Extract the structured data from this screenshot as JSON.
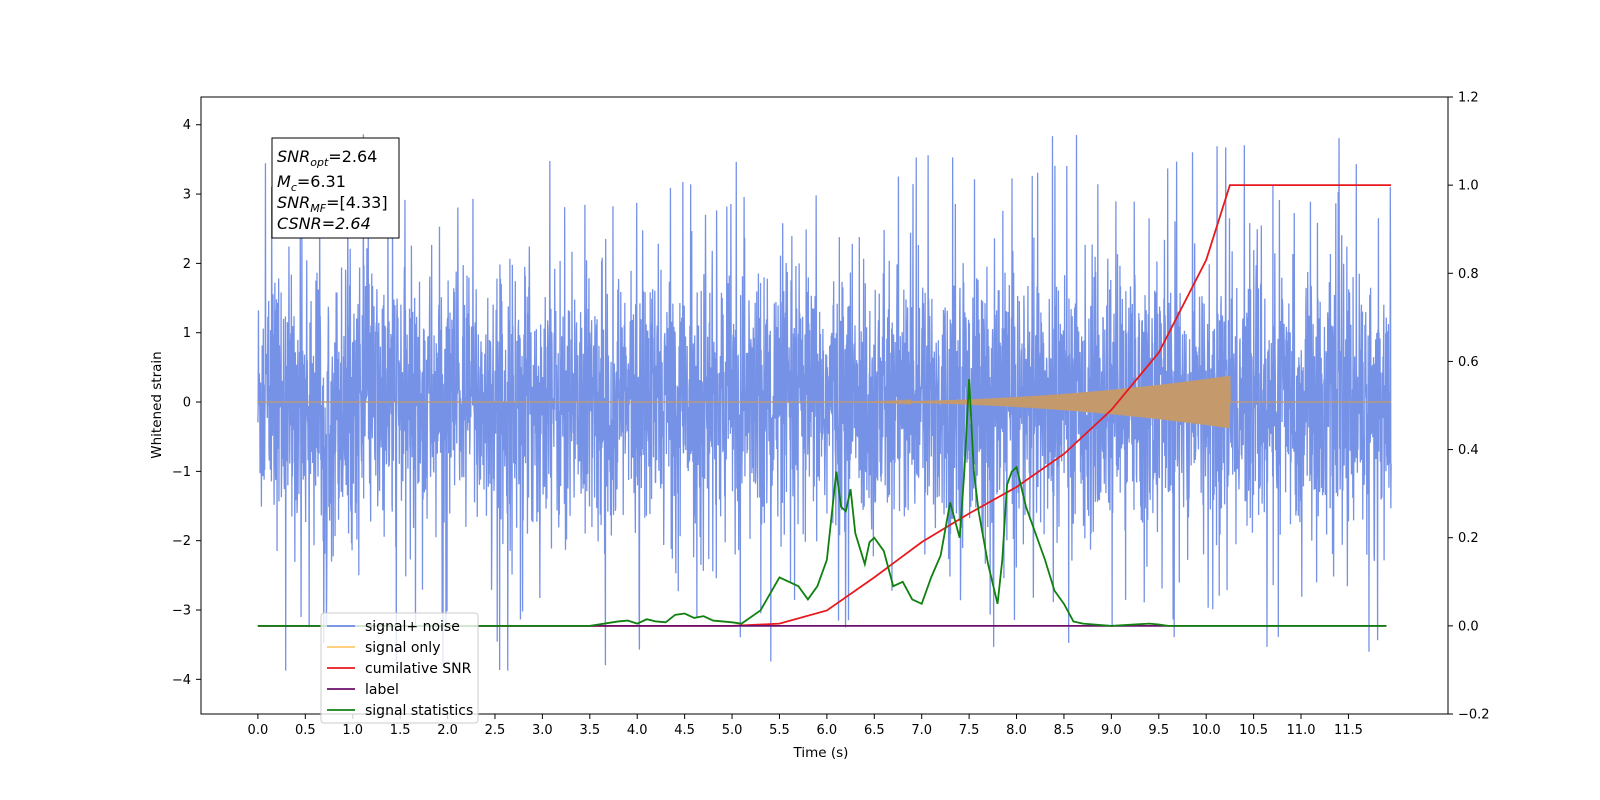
{
  "chart_data": {
    "type": "line",
    "xlabel": "Time (s)",
    "ylabel_left": "Whitened strain",
    "ylabel_right": "",
    "xlim": [
      -0.6,
      12.55
    ],
    "ylim_left": [
      -4.5,
      4.4
    ],
    "ylim_right": [
      -0.2,
      1.2
    ],
    "x_ticks": [
      "0.0",
      "0.5",
      "1.0",
      "1.5",
      "2.0",
      "2.5",
      "3.0",
      "3.5",
      "4.0",
      "4.5",
      "5.0",
      "5.5",
      "6.0",
      "6.5",
      "7.0",
      "7.5",
      "8.0",
      "8.5",
      "9.0",
      "9.5",
      "10.0",
      "10.5",
      "11.0",
      "11.5"
    ],
    "y_ticks_left": [
      "−4",
      "−3",
      "−2",
      "−1",
      "0",
      "1",
      "2",
      "3",
      "4"
    ],
    "y_ticks_right": [
      "−0.2",
      "0.0",
      "0.2",
      "0.4",
      "0.6",
      "0.8",
      "1.0",
      "1.2"
    ],
    "grid": false,
    "legend_position": "lower-left",
    "annotation": {
      "opt_prefix": "SNR",
      "opt_sub": "opt",
      "opt_value": "=2.64",
      "mc_prefix": "M",
      "mc_sub": "c",
      "mc_value": "=6.31",
      "mf_prefix": "SNR",
      "mf_sub": "MF",
      "mf_value": "=[4.33]",
      "csnr_text": "CSNR=2.64"
    },
    "series": [
      {
        "name": "signal+ noise",
        "color": "#6f8ce6",
        "axis": "left",
        "description_values": "whitened noise, x from 0.0 to 11.95 s, amplitude roughly within -2 to 2.5 with spikes",
        "x_range": [
          0.0,
          11.95
        ],
        "envelope_upper": 2.5,
        "envelope_lower": -2.1,
        "spike_max": 4.0,
        "spike_min": -4.1
      },
      {
        "name": "signal only",
        "color": "#ffb347",
        "axis": "left",
        "x_range": [
          0.0,
          11.95
        ],
        "chirp_start": 6.0,
        "chirp_end": 10.25,
        "chirp_peak_amplitude": 0.38
      },
      {
        "name": "cumilative SNR",
        "color": "#e8191e",
        "axis": "right",
        "x": [
          0.0,
          5.0,
          5.5,
          6.0,
          6.5,
          7.0,
          7.5,
          8.0,
          8.5,
          9.0,
          9.5,
          10.0,
          10.25,
          10.26,
          11.95
        ],
        "values": [
          0.0,
          0.0,
          0.005,
          0.035,
          0.11,
          0.19,
          0.255,
          0.315,
          0.39,
          0.49,
          0.62,
          0.83,
          1.0,
          1.0,
          1.0
        ]
      },
      {
        "name": "label",
        "color": "#6b0f6b",
        "axis": "right",
        "x": [
          0.0,
          11.9
        ],
        "values": [
          0.0,
          0.0
        ]
      },
      {
        "name": "signal statistics",
        "color": "#108010",
        "axis": "right",
        "x": [
          0.0,
          3.0,
          3.5,
          3.8,
          3.9,
          4.0,
          4.1,
          4.2,
          4.3,
          4.4,
          4.5,
          4.6,
          4.7,
          4.8,
          5.0,
          5.1,
          5.3,
          5.5,
          5.6,
          5.7,
          5.8,
          5.9,
          6.0,
          6.1,
          6.15,
          6.2,
          6.25,
          6.3,
          6.4,
          6.45,
          6.5,
          6.6,
          6.7,
          6.8,
          6.9,
          7.0,
          7.1,
          7.2,
          7.3,
          7.4,
          7.45,
          7.5,
          7.55,
          7.6,
          7.7,
          7.8,
          7.85,
          7.9,
          7.95,
          8.0,
          8.1,
          8.2,
          8.3,
          8.4,
          8.5,
          8.6,
          8.7,
          9.0,
          9.4,
          9.5,
          9.6,
          11.9
        ],
        "values": [
          0.0,
          0.0,
          0.0,
          0.01,
          0.012,
          0.005,
          0.015,
          0.01,
          0.008,
          0.025,
          0.028,
          0.018,
          0.022,
          0.012,
          0.008,
          0.005,
          0.035,
          0.11,
          0.1,
          0.09,
          0.06,
          0.09,
          0.15,
          0.35,
          0.27,
          0.26,
          0.31,
          0.21,
          0.14,
          0.19,
          0.2,
          0.17,
          0.09,
          0.1,
          0.06,
          0.05,
          0.11,
          0.16,
          0.28,
          0.2,
          0.35,
          0.56,
          0.35,
          0.26,
          0.14,
          0.05,
          0.15,
          0.32,
          0.35,
          0.36,
          0.27,
          0.21,
          0.15,
          0.08,
          0.05,
          0.01,
          0.005,
          0.0,
          0.005,
          0.003,
          0.0,
          0.0
        ]
      }
    ],
    "legend_items": [
      {
        "label": "signal+ noise",
        "color": "#6f8ce6"
      },
      {
        "label": "signal only",
        "color": "#ffc870"
      },
      {
        "label": "cumilative SNR",
        "color": "#e8191e"
      },
      {
        "label": "label",
        "color": "#6b0f6b"
      },
      {
        "label": "signal statistics",
        "color": "#108010"
      }
    ]
  }
}
